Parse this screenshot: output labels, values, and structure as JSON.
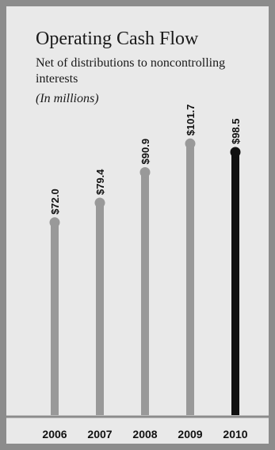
{
  "header": {
    "title": "Operating Cash Flow",
    "subtitle": "Net of distributions to noncontrolling interests",
    "units": "(In millions)"
  },
  "chart_data": {
    "type": "bar",
    "title": "Operating Cash Flow",
    "subtitle": "Net of distributions to noncontrolling interests",
    "units": "(In millions)",
    "categories": [
      "2006",
      "2007",
      "2008",
      "2009",
      "2010"
    ],
    "values": [
      72.0,
      79.4,
      90.9,
      101.7,
      98.5
    ],
    "labels": [
      "$72.0",
      "$79.4",
      "$90.9",
      "$101.7",
      "$98.5"
    ],
    "highlight_index": 4,
    "colors": {
      "bar": "#999999",
      "highlight": "#111111",
      "frame": "#8c8c8c",
      "background": "#e9e9e9"
    },
    "grid": false,
    "legend": "none"
  }
}
